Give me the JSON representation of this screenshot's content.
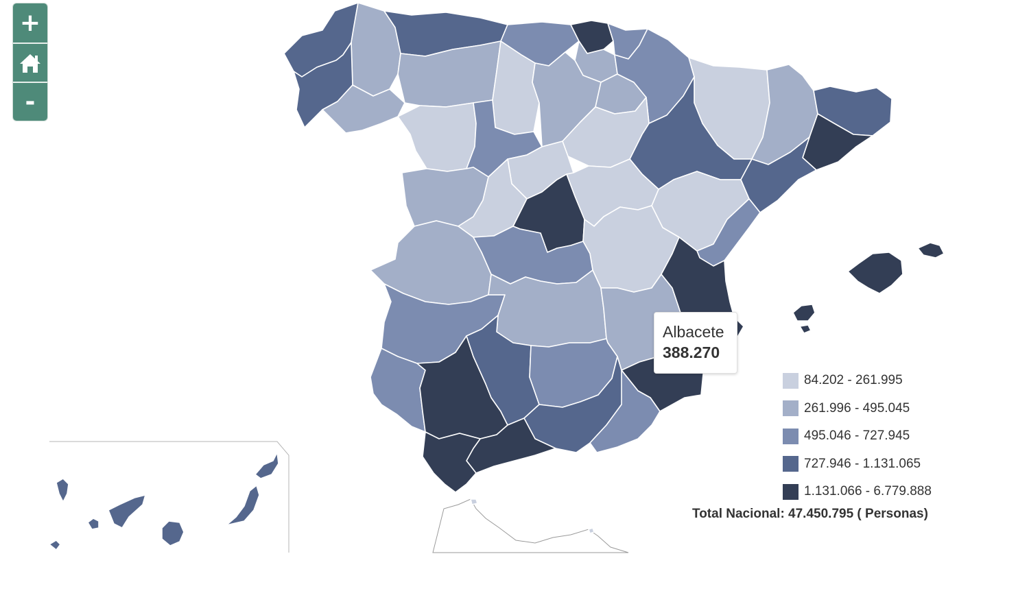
{
  "controls": {
    "zoom_in_label": "+",
    "zoom_out_label": "-",
    "home_icon": "home-icon",
    "accent_color": "#4e8a79"
  },
  "tooltip": {
    "province": "Albacete",
    "value": "388.270"
  },
  "legend": {
    "items": [
      {
        "label": "84.202 - 261.995",
        "color": "#c9d0df"
      },
      {
        "label": "261.996 - 495.045",
        "color": "#a3afc8"
      },
      {
        "label": "495.046 - 727.945",
        "color": "#7c8cb0"
      },
      {
        "label": "727.946 - 1.131.065",
        "color": "#55678d"
      },
      {
        "label": "1.131.066 - 6.779.888",
        "color": "#333e55"
      }
    ]
  },
  "total": "Total Nacional: 47.450.795 ( Personas)"
}
